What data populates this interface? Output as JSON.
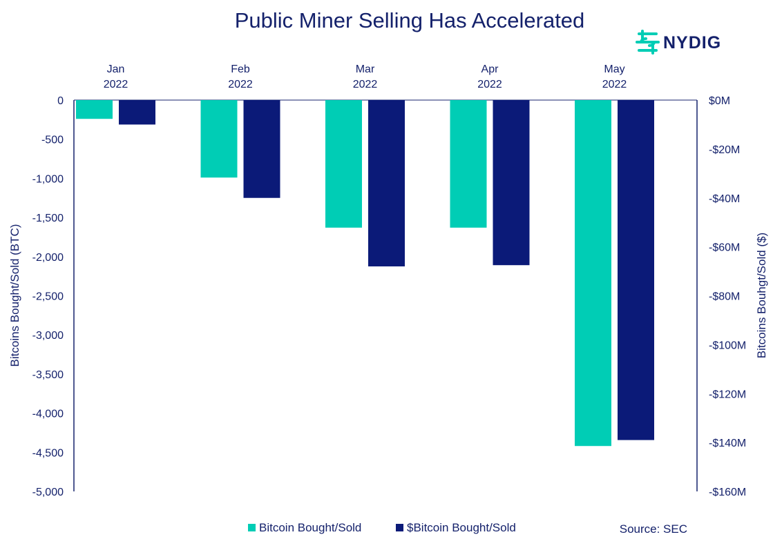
{
  "chart_data": {
    "type": "bar",
    "title": "Public Miner Selling Has Accelerated",
    "categories": [
      {
        "month": "Jan",
        "year": "2022"
      },
      {
        "month": "Feb",
        "year": "2022"
      },
      {
        "month": "Mar",
        "year": "2022"
      },
      {
        "month": "Apr",
        "year": "2022"
      },
      {
        "month": "May",
        "year": "2022"
      }
    ],
    "series": [
      {
        "name": "Bitcoin Bought/Sold",
        "axis": "left",
        "color": "#00cdb5",
        "values": [
          -240,
          -990,
          -1630,
          -1630,
          -4420
        ]
      },
      {
        "name": "$Bitcoin Bought/Sold",
        "axis": "right",
        "color": "#0b1a78",
        "values": [
          -10,
          -40,
          -68,
          -67.5,
          -139
        ]
      }
    ],
    "ylabel": "Bitcoins Bought/Sold (BTC)",
    "ylabel_right": "Bitcoins Bouhgt/Sold ($)",
    "ylim": [
      -5000,
      0
    ],
    "ylim_right": [
      -160,
      0
    ],
    "yticks": [
      "0",
      "-500",
      "-1,000",
      "-1,500",
      "-2,000",
      "-2,500",
      "-3,000",
      "-3,500",
      "-4,000",
      "-4,500",
      "-5,000"
    ],
    "yticks_right": [
      "$0M",
      "-$20M",
      "-$40M",
      "-$60M",
      "-$80M",
      "-$100M",
      "-$120M",
      "-$140M",
      "-$160M"
    ],
    "legend_position": "bottom-center",
    "grid": false
  },
  "source": "Source: SEC",
  "logo": {
    "text": "NYDIG",
    "accent": "#00cdb5",
    "text_color": "#14216b"
  }
}
